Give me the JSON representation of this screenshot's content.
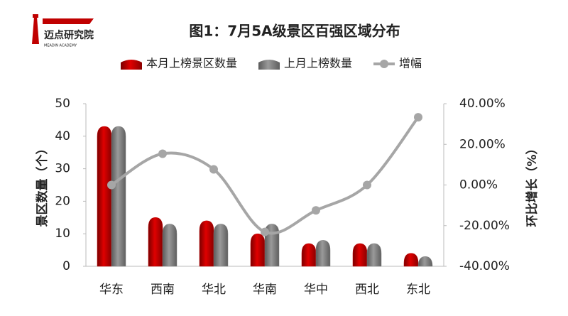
{
  "logo": {
    "name": "迈点研究院",
    "subtitle": "MEADIN ACADEMY"
  },
  "chart_data": {
    "type": "bar-line",
    "title": "图1：7月5A级景区百强区域分布",
    "y_label": "景区数量（个）",
    "y2_label": "环比增长（%）",
    "categories": [
      "华东",
      "西南",
      "华北",
      "华南",
      "华中",
      "西北",
      "东北"
    ],
    "series": [
      {
        "name": "本月上榜景区数量",
        "type": "bar",
        "color": "#c00000",
        "values": [
          43,
          15,
          14,
          10,
          7,
          7,
          4
        ]
      },
      {
        "name": "上月上榜数量",
        "type": "bar",
        "color": "#808080",
        "values": [
          43,
          13,
          13,
          13,
          8,
          7,
          3
        ]
      },
      {
        "name": "增幅",
        "type": "line",
        "axis": "y2",
        "color": "#a6a6a6",
        "values": [
          0,
          15.38,
          7.69,
          -23.08,
          -12.5,
          0,
          33.33
        ]
      }
    ],
    "ylim": [
      0,
      50
    ],
    "yticks": [
      0,
      10,
      20,
      30,
      40,
      50
    ],
    "y2lim": [
      -40,
      40
    ],
    "y2ticks": [
      {
        "value": -40,
        "label": "-40.00%"
      },
      {
        "value": -20,
        "label": "-20.00%"
      },
      {
        "value": 0,
        "label": "0.00%"
      },
      {
        "value": 20,
        "label": "20.00%"
      },
      {
        "value": 40,
        "label": "40.00%"
      }
    ],
    "legend": "top",
    "grid": false
  }
}
